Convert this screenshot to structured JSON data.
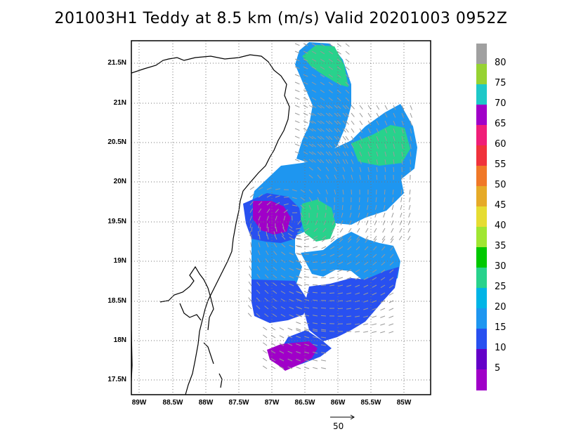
{
  "title": "201003H1 Teddy at 8.5 km (m/s) Valid 20201003 0952Z",
  "map": {
    "lat_labels": [
      "21.5N",
      "21N",
      "20.5N",
      "20N",
      "19.5N",
      "19N",
      "18.5N",
      "18N",
      "17.5N"
    ],
    "lon_labels": [
      "89W",
      "88.5W",
      "88W",
      "87.5W",
      "87W",
      "86.5W",
      "86W",
      "85.5W",
      "85W"
    ],
    "lon_range": [
      -89.1,
      -84.6
    ],
    "lat_range": [
      17.3,
      21.75
    ],
    "gridlines": "dotted"
  },
  "colorbar": {
    "labels": [
      "80",
      "75",
      "70",
      "65",
      "60",
      "55",
      "50",
      "45",
      "40",
      "35",
      "30",
      "25",
      "20",
      "15",
      "10",
      "5"
    ],
    "colors": [
      "#a0a0a0",
      "#96d232",
      "#1ec8c8",
      "#a000c8",
      "#f01e78",
      "#f0323c",
      "#f07828",
      "#e6aa28",
      "#e6dc32",
      "#a0e632",
      "#00c800",
      "#28d28c",
      "#00b4e6",
      "#1e96f0",
      "#2850f0",
      "#6400c8",
      "#a000c8"
    ]
  },
  "reference_vector": {
    "label": "50"
  },
  "icons": {
    "reference_arrow": "right-arrow-icon"
  }
}
